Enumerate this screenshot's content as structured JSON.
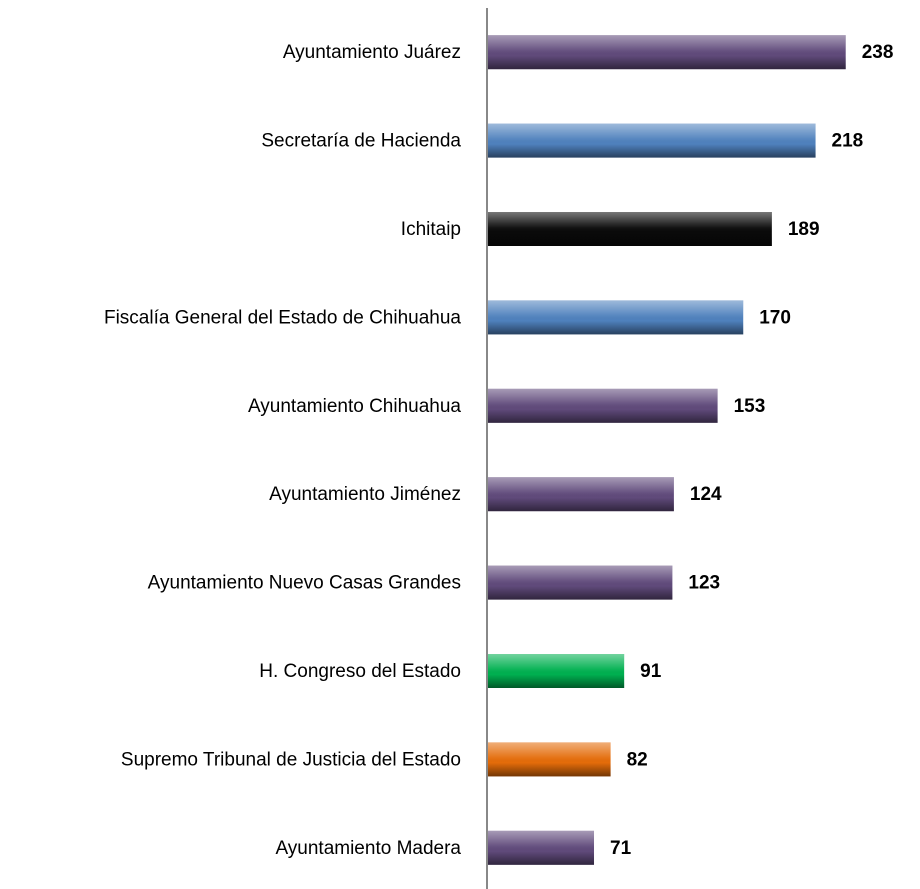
{
  "chart_data": {
    "type": "bar",
    "orientation": "horizontal",
    "categories": [
      "Ayuntamiento Juárez",
      "Secretaría de Hacienda",
      "Ichitaip",
      "Fiscalía General del Estado de Chihuahua",
      "Ayuntamiento Chihuahua",
      "Ayuntamiento Jiménez",
      "Ayuntamiento Nuevo Casas Grandes",
      "H. Congreso del Estado",
      "Supremo Tribunal de Justicia del Estado",
      "Ayuntamiento Madera"
    ],
    "values": [
      238,
      218,
      189,
      170,
      153,
      124,
      123,
      91,
      82,
      71
    ],
    "colors": [
      "#604a7b",
      "#4f81bd",
      "#0a0a0a",
      "#00b050",
      "#e46c0a"
    ],
    "bar_colors": [
      0,
      1,
      2,
      1,
      0,
      0,
      0,
      3,
      4,
      0
    ],
    "xlim": [
      0,
      280
    ]
  }
}
